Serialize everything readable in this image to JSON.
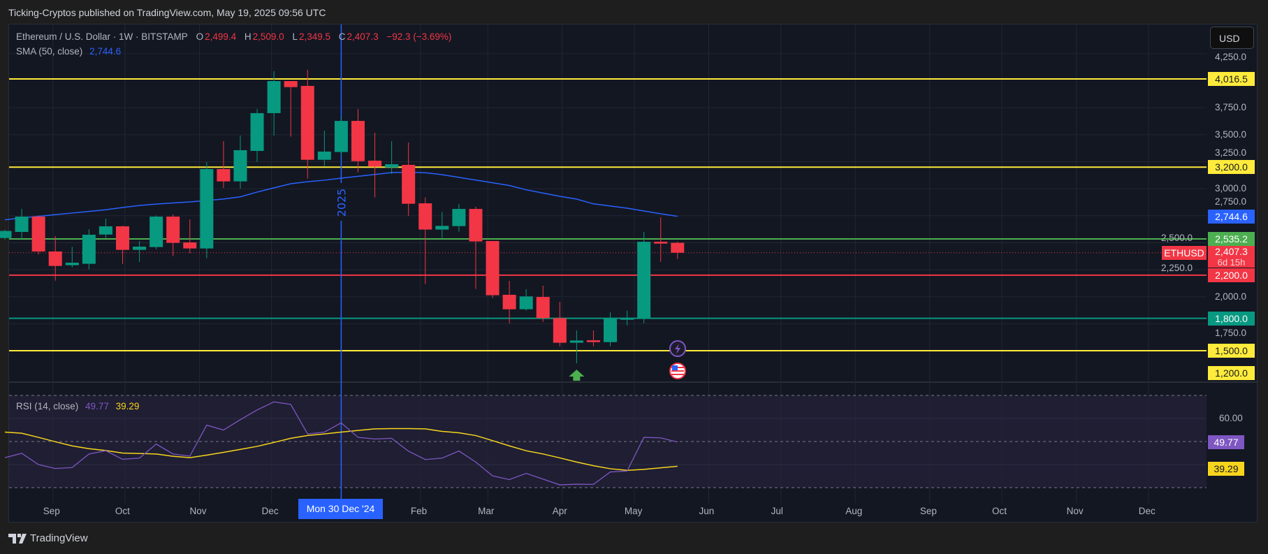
{
  "published": "Ticking-Cryptos published on TradingView.com, May 19, 2025 09:56 UTC",
  "legend": {
    "symbol": "Ethereum / U.S. Dollar · 1W · BITSTAMP",
    "o_label": "O",
    "o": "2,499.4",
    "h_label": "H",
    "h": "2,509.0",
    "l_label": "L",
    "l": "2,349.5",
    "c_label": "C",
    "c": "2,407.3",
    "change": "−92.3 (−3.69%)",
    "sma_label": "SMA (50, close)",
    "sma_value": "2,744.6",
    "rsi_label": "RSI (14, close)",
    "rsi_value": "49.77",
    "rsi_ma_value": "39.29"
  },
  "currency_button": "USD",
  "colors": {
    "up": "#089981",
    "down": "#f23645",
    "sma": "#2962ff",
    "rsi": "#7e57c2",
    "rsi_ma": "#f7d51d",
    "level_yellow": "#ffeb3b",
    "level_green": "#4caf50",
    "level_red": "#f23645",
    "level_teal": "#089981"
  },
  "price_ticks": [
    "4,250.0",
    "3,750.0",
    "3,500.0",
    "3,250.0",
    "3,000.0",
    "2,750.0",
    "2,500.0",
    "2,250.0",
    "2,000.0",
    "1,750.0"
  ],
  "price_tick_values": [
    4250,
    3750,
    3500,
    3250,
    3000,
    2750,
    2500,
    2250,
    2000,
    1750
  ],
  "levels": [
    {
      "price": 4016.5,
      "label": "4,016.5",
      "color": "#ffeb3b",
      "text": "#131722"
    },
    {
      "price": 3200,
      "label": "3,200.0",
      "color": "#ffeb3b",
      "text": "#131722"
    },
    {
      "price": 2535.2,
      "label": "2,535.2",
      "color": "#4caf50",
      "text": "#ffffff"
    },
    {
      "price": 2200,
      "label": "2,200.0",
      "color": "#f23645",
      "text": "#ffffff"
    },
    {
      "price": 1800,
      "label": "1,800.0",
      "color": "#089981",
      "text": "#ffffff"
    },
    {
      "price": 1500,
      "label": "1,500.0",
      "color": "#ffeb3b",
      "text": "#131722"
    }
  ],
  "extra_labels": {
    "sma": "2,744.6",
    "last_price": "2,407.3",
    "countdown": "6d 15h",
    "symbol_tag": "ETHUSD",
    "bottom": "1,200.0"
  },
  "last_price": 2407.3,
  "year_marker": "2025",
  "crosshair_date": "Mon 30 Dec '24",
  "time_labels": [
    {
      "label": "Sep",
      "date": "2024-09-01"
    },
    {
      "label": "Oct",
      "date": "2024-10-01"
    },
    {
      "label": "Nov",
      "date": "2024-11-01"
    },
    {
      "label": "Dec",
      "date": "2024-12-01"
    },
    {
      "label": "Feb",
      "date": "2025-02-01"
    },
    {
      "label": "Mar",
      "date": "2025-03-01"
    },
    {
      "label": "Apr",
      "date": "2025-04-01"
    },
    {
      "label": "May",
      "date": "2025-05-01"
    },
    {
      "label": "Jun",
      "date": "2025-06-01"
    },
    {
      "label": "Jul",
      "date": "2025-07-01"
    },
    {
      "label": "Aug",
      "date": "2025-08-01"
    },
    {
      "label": "Sep",
      "date": "2025-09-01"
    },
    {
      "label": "Oct",
      "date": "2025-10-01"
    },
    {
      "label": "Nov",
      "date": "2025-11-01"
    },
    {
      "label": "Dec",
      "date": "2025-12-01"
    }
  ],
  "rsi_axis": {
    "tick": "60.00",
    "rsi_label": "49.77",
    "ma_label": "39.29",
    "bands": [
      70,
      50,
      30
    ]
  },
  "chart_data": {
    "type": "candlestick",
    "interval": "1W",
    "first_week": "2024-08-12",
    "ohlc": [
      [
        2544,
        2620,
        2530,
        2609
      ],
      [
        2600,
        2813,
        2535,
        2742
      ],
      [
        2742,
        2753,
        2393,
        2419
      ],
      [
        2419,
        2561,
        2149,
        2285
      ],
      [
        2292,
        2462,
        2272,
        2315
      ],
      [
        2305,
        2626,
        2253,
        2574
      ],
      [
        2576,
        2723,
        2544,
        2652
      ],
      [
        2652,
        2658,
        2305,
        2434
      ],
      [
        2434,
        2516,
        2322,
        2464
      ],
      [
        2460,
        2753,
        2440,
        2742
      ],
      [
        2742,
        2762,
        2376,
        2499
      ],
      [
        2503,
        2716,
        2402,
        2447
      ],
      [
        2447,
        3247,
        2356,
        3182
      ],
      [
        3182,
        3441,
        3008,
        3068
      ],
      [
        3068,
        3493,
        3001,
        3357
      ],
      [
        3350,
        3738,
        3249,
        3700
      ],
      [
        3700,
        4088,
        3493,
        3997
      ],
      [
        3997,
        3997,
        3482,
        3941
      ],
      [
        3952,
        4101,
        3094,
        3268
      ],
      [
        3268,
        3538,
        3210,
        3344
      ],
      [
        3340,
        3665,
        3303,
        3628
      ],
      [
        3628,
        3738,
        3152,
        3255
      ],
      [
        3260,
        3518,
        2919,
        3204
      ],
      [
        3197,
        3441,
        3137,
        3227
      ],
      [
        3221,
        3428,
        2749,
        2861
      ],
      [
        2865,
        2919,
        2117,
        2622
      ],
      [
        2622,
        2785,
        2544,
        2656
      ],
      [
        2654,
        2859,
        2602,
        2813
      ],
      [
        2813,
        2833,
        2072,
        2512
      ],
      [
        2516,
        2516,
        1988,
        2014
      ],
      [
        2018,
        2147,
        1755,
        1884
      ],
      [
        1884,
        2070,
        1871,
        2003
      ],
      [
        1998,
        2102,
        1768,
        1802
      ],
      [
        1802,
        1953,
        1541,
        1574
      ],
      [
        1574,
        1688,
        1384,
        1595
      ],
      [
        1597,
        1688,
        1541,
        1580
      ],
      [
        1580,
        1856,
        1541,
        1798
      ],
      [
        1792,
        1871,
        1735,
        1800
      ],
      [
        1802,
        2600,
        1755,
        2509
      ],
      [
        2509,
        2736,
        2324,
        2492
      ],
      [
        2499.4,
        2509.0,
        2349.5,
        2407.3
      ]
    ],
    "sma50": [
      2712,
      2730,
      2745,
      2760,
      2775,
      2790,
      2805,
      2826,
      2845,
      2858,
      2868,
      2878,
      2891,
      2905,
      2925,
      2969,
      3008,
      3046,
      3065,
      3079,
      3098,
      3115,
      3132,
      3150,
      3152,
      3148,
      3130,
      3105,
      3080,
      3055,
      3030,
      2990,
      2960,
      2930,
      2904,
      2860,
      2840,
      2820,
      2794,
      2768,
      2744.6
    ],
    "rsi14": [
      43.0,
      44.9,
      40.0,
      38.3,
      38.7,
      44.6,
      46.0,
      42.3,
      42.8,
      48.9,
      44.6,
      43.7,
      57.1,
      55.0,
      59.5,
      63.7,
      67.2,
      66.1,
      53.3,
      54.1,
      58.1,
      51.8,
      51.1,
      51.4,
      45.8,
      42.2,
      42.8,
      45.9,
      41.1,
      35.1,
      33.5,
      36.2,
      33.7,
      31.2,
      31.5,
      31.4,
      36.8,
      37.2,
      51.8,
      51.6,
      49.77
    ],
    "rsi_ma": [
      54.1,
      53.6,
      51.8,
      49.9,
      48.1,
      46.9,
      46.1,
      45.0,
      44.8,
      44.6,
      43.6,
      43.0,
      44.1,
      45.3,
      46.6,
      47.9,
      49.6,
      51.4,
      52.6,
      53.3,
      54.1,
      54.8,
      55.5,
      55.6,
      55.6,
      55.5,
      54.4,
      53.8,
      52.6,
      50.4,
      48.1,
      46.0,
      44.6,
      42.9,
      41.1,
      39.5,
      38.2,
      37.5,
      37.9,
      38.6,
      39.29
    ],
    "markers": [
      {
        "type": "arrow-up",
        "week": "2025-04-07"
      }
    ]
  }
}
